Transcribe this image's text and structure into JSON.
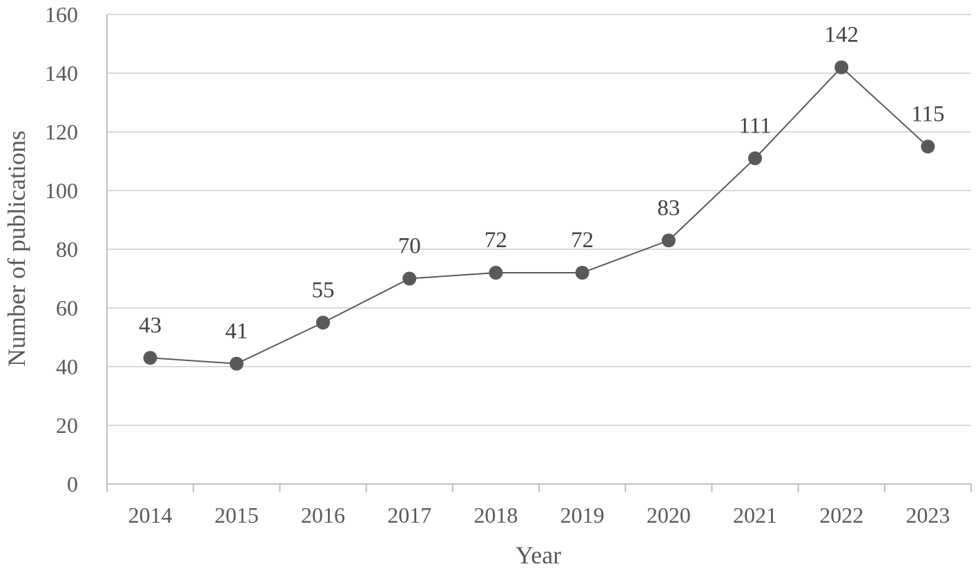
{
  "chart_data": {
    "type": "line",
    "title": "",
    "xlabel": "Year",
    "ylabel": "Number of publications",
    "categories": [
      "2014",
      "2015",
      "2016",
      "2017",
      "2018",
      "2019",
      "2020",
      "2021",
      "2022",
      "2023"
    ],
    "series": [
      {
        "values": [
          43,
          41,
          55,
          70,
          72,
          72,
          83,
          111,
          142,
          115
        ]
      }
    ],
    "data_labels": [
      "43",
      "41",
      "55",
      "70",
      "72",
      "72",
      "83",
      "111",
      "142",
      "115"
    ],
    "ylim": [
      0,
      160
    ],
    "yticks": [
      "0",
      "20",
      "40",
      "60",
      "80",
      "100",
      "120",
      "140",
      "160"
    ],
    "grid": "horizontal",
    "legend": "none",
    "colors": {
      "line": "#595959",
      "marker": "#595959",
      "grid": "#d9d9d9",
      "axis": "#bfbfbf",
      "text": "#595959"
    }
  }
}
